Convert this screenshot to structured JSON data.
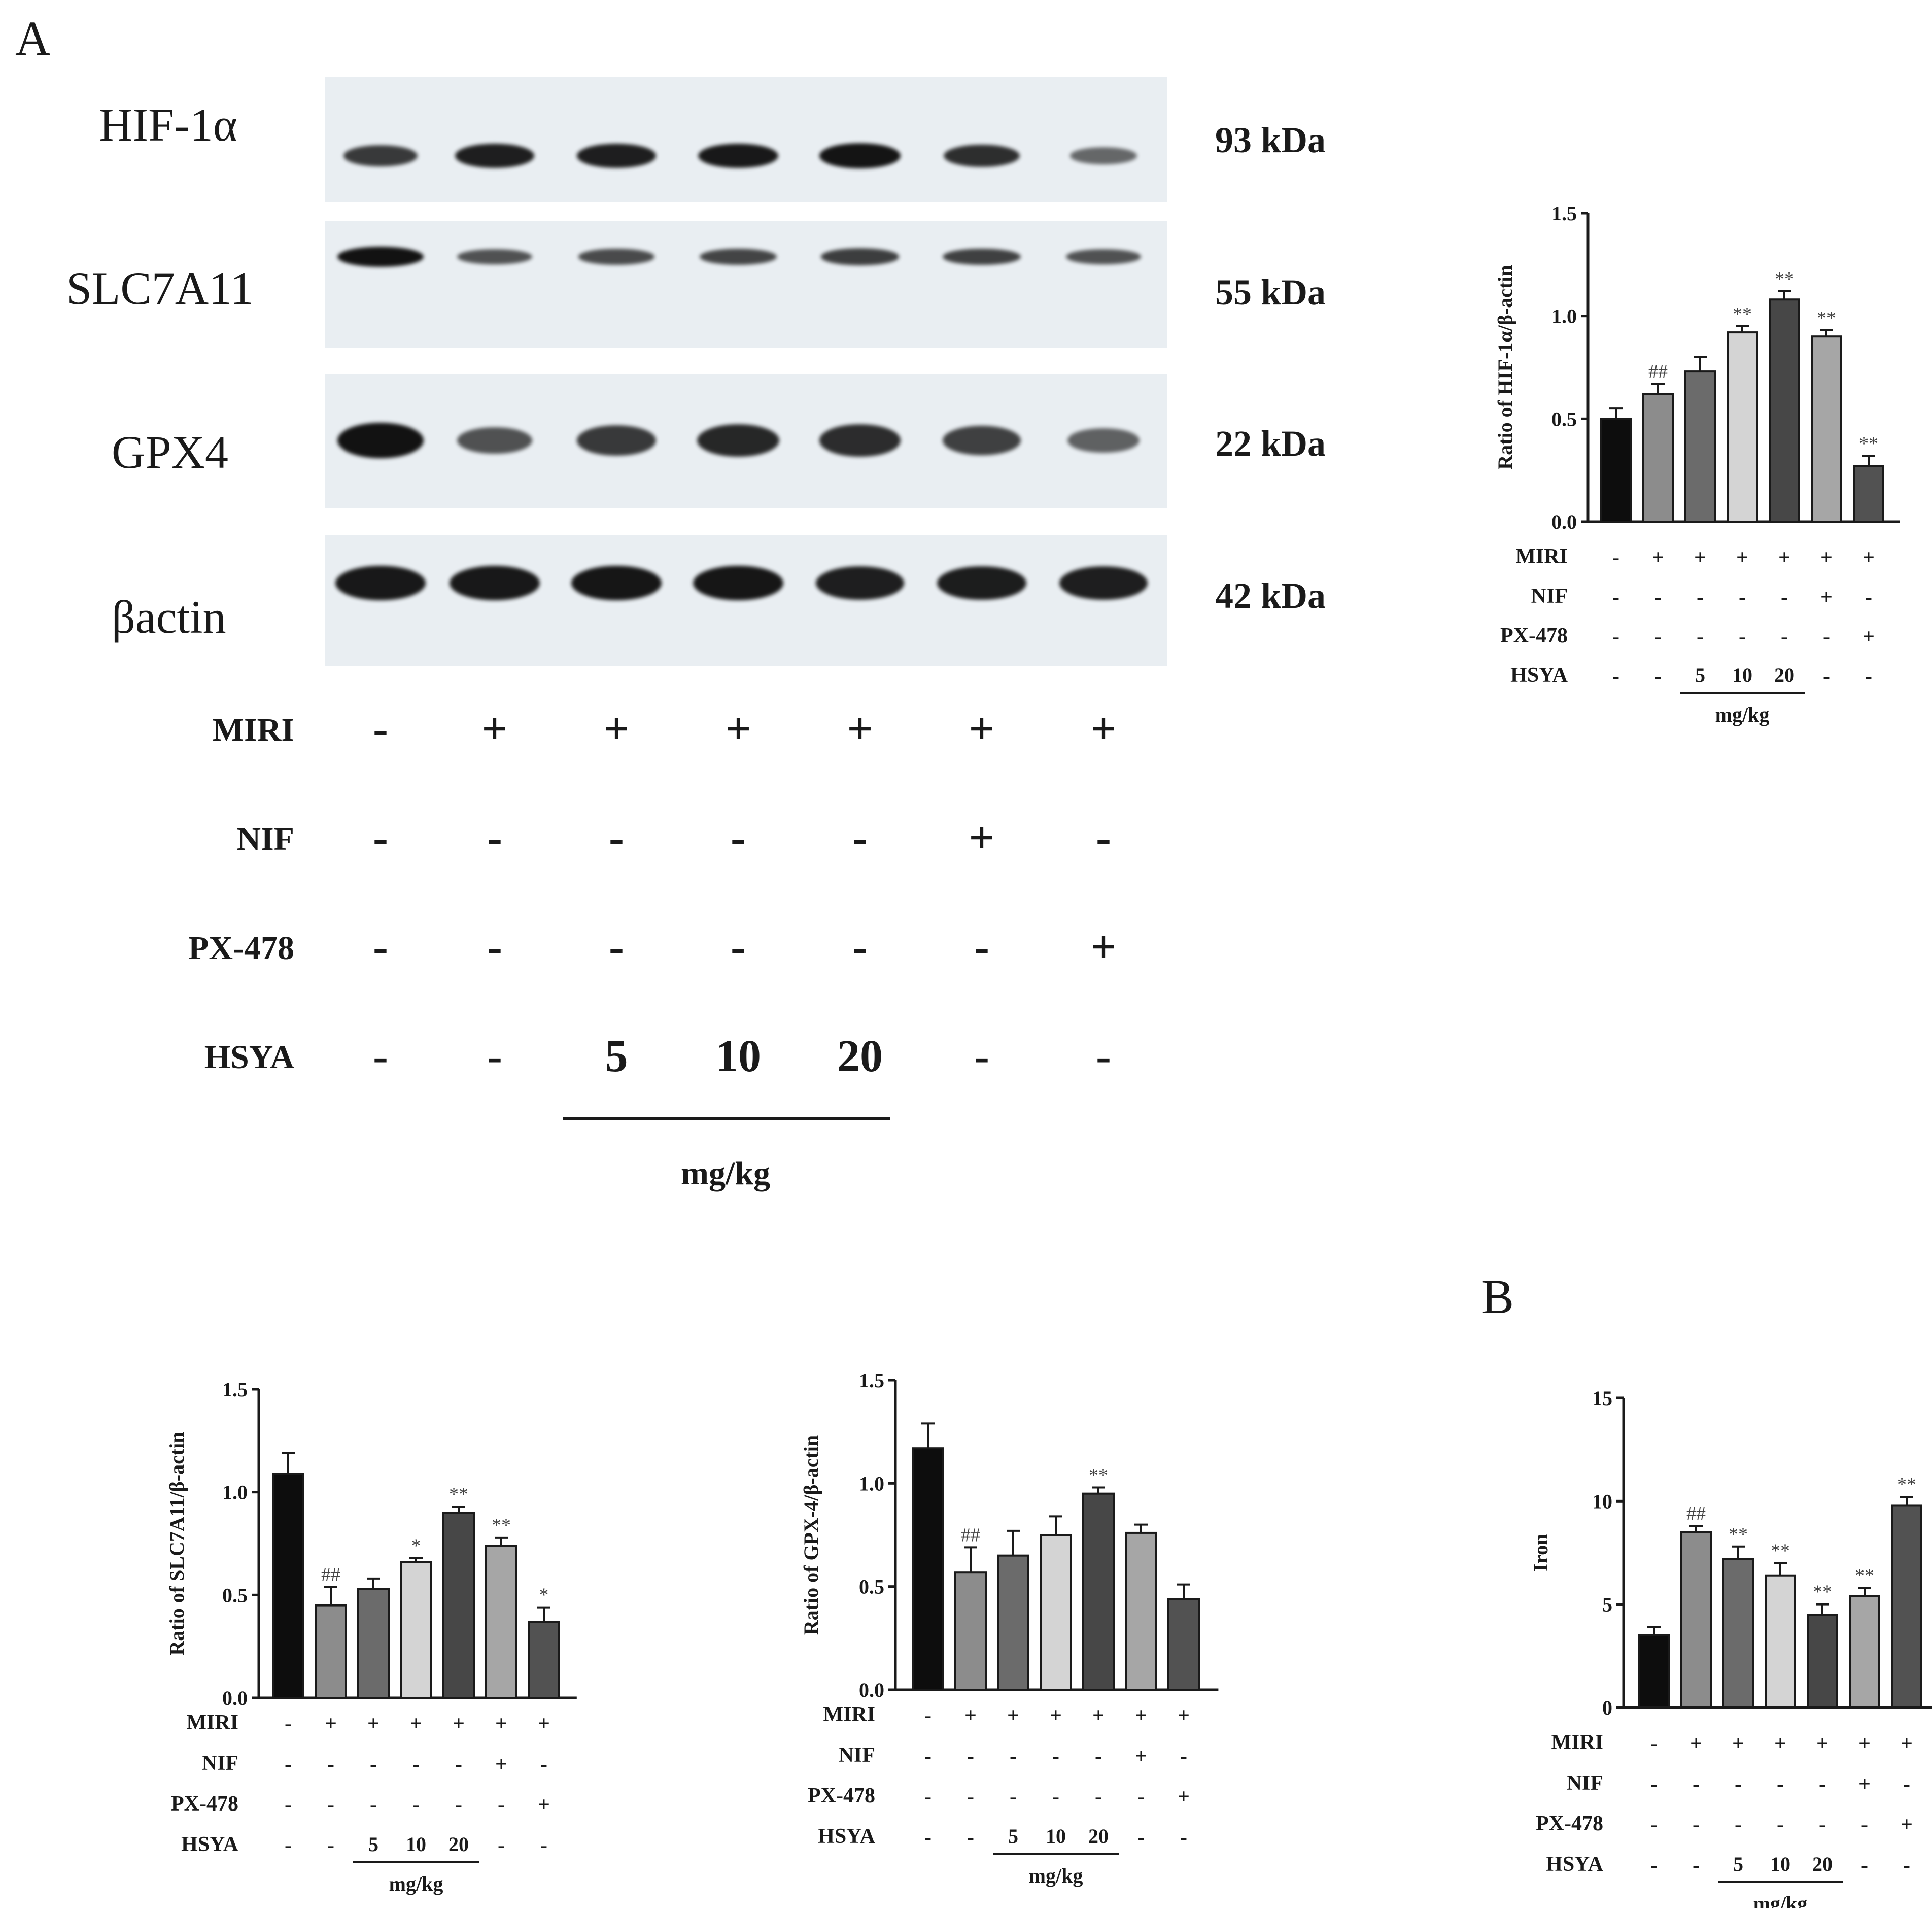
{
  "panels": {
    "a": "A",
    "b": "B"
  },
  "western_blot": {
    "rows": [
      {
        "label": "HIF-1α",
        "kda": "93 kDa",
        "intensity": [
          0.72,
          0.9,
          0.9,
          0.95,
          0.98,
          0.8,
          0.4
        ]
      },
      {
        "label": "SLC7A11",
        "kda": "55 kDa",
        "intensity": [
          1.0,
          0.55,
          0.6,
          0.65,
          0.7,
          0.68,
          0.55
        ]
      },
      {
        "label": "GPX4",
        "kda": "22 kDa",
        "intensity": [
          1.0,
          0.55,
          0.72,
          0.85,
          0.82,
          0.68,
          0.45
        ]
      },
      {
        "label": "βactin",
        "kda": "42 kDa",
        "intensity": [
          0.95,
          0.95,
          0.97,
          0.97,
          0.9,
          0.92,
          0.9
        ]
      }
    ],
    "conditions": [
      {
        "name": "MIRI",
        "values": [
          "-",
          "+",
          "+",
          "+",
          "+",
          "+",
          "+"
        ]
      },
      {
        "name": "NIF",
        "values": [
          "-",
          "-",
          "-",
          "-",
          "-",
          "+",
          "-"
        ]
      },
      {
        "name": "PX-478",
        "values": [
          "-",
          "-",
          "-",
          "-",
          "-",
          "-",
          "+"
        ]
      },
      {
        "name": "HSYA",
        "values": [
          "-",
          "-",
          "5",
          "10",
          "20",
          "-",
          "-"
        ]
      }
    ],
    "dose_unit": "mg/kg"
  },
  "colors": {
    "bars": [
      "#0d0d0d",
      "#8c8c8c",
      "#6b6b6b",
      "#d4d4d4",
      "#474747",
      "#a6a6a6",
      "#525252"
    ],
    "blot_background": "#e9eef2",
    "band": "#121212"
  },
  "chart_data": [
    {
      "type": "bar",
      "ylabel": "Ratio of HIF-1α/β-actin",
      "ylim": [
        0,
        1.5
      ],
      "yticks": [
        "0.0",
        "0.5",
        "1.0",
        "1.5"
      ],
      "values": [
        0.5,
        0.62,
        0.73,
        0.92,
        1.08,
        0.9,
        0.27
      ],
      "errors": [
        0.05,
        0.05,
        0.07,
        0.03,
        0.04,
        0.03,
        0.05
      ],
      "annotations": [
        "",
        "##",
        "",
        "**",
        "**",
        "**",
        "**"
      ],
      "conditions": [
        {
          "name": "MIRI",
          "values": [
            "-",
            "+",
            "+",
            "+",
            "+",
            "+",
            "+"
          ]
        },
        {
          "name": "NIF",
          "values": [
            "-",
            "-",
            "-",
            "-",
            "-",
            "+",
            "-"
          ]
        },
        {
          "name": "PX-478",
          "values": [
            "-",
            "-",
            "-",
            "-",
            "-",
            "-",
            "+"
          ]
        },
        {
          "name": "HSYA",
          "values": [
            "-",
            "-",
            "5",
            "10",
            "20",
            "-",
            "-"
          ]
        }
      ],
      "dose_unit": "mg/kg"
    },
    {
      "type": "bar",
      "ylabel": "Ratio of SLC7A11/β-actin",
      "ylim": [
        0,
        1.5
      ],
      "yticks": [
        "0.0",
        "0.5",
        "1.0",
        "1.5"
      ],
      "values": [
        1.09,
        0.45,
        0.53,
        0.66,
        0.9,
        0.74,
        0.37
      ],
      "errors": [
        0.1,
        0.09,
        0.05,
        0.02,
        0.03,
        0.04,
        0.07
      ],
      "annotations": [
        "",
        "##",
        "",
        "*",
        "**",
        "**",
        "*"
      ],
      "conditions": [
        {
          "name": "MIRI",
          "values": [
            "-",
            "+",
            "+",
            "+",
            "+",
            "+",
            "+"
          ]
        },
        {
          "name": "NIF",
          "values": [
            "-",
            "-",
            "-",
            "-",
            "-",
            "+",
            "-"
          ]
        },
        {
          "name": "PX-478",
          "values": [
            "-",
            "-",
            "-",
            "-",
            "-",
            "-",
            "+"
          ]
        },
        {
          "name": "HSYA",
          "values": [
            "-",
            "-",
            "5",
            "10",
            "20",
            "-",
            "-"
          ]
        }
      ],
      "dose_unit": "mg/kg"
    },
    {
      "type": "bar",
      "ylabel": "Ratio of GPX-4/β-actin",
      "ylim": [
        0,
        1.5
      ],
      "yticks": [
        "0.0",
        "0.5",
        "1.0",
        "1.5"
      ],
      "values": [
        1.17,
        0.57,
        0.65,
        0.75,
        0.95,
        0.76,
        0.44
      ],
      "errors": [
        0.12,
        0.12,
        0.12,
        0.09,
        0.03,
        0.04,
        0.07
      ],
      "annotations": [
        "",
        "##",
        "",
        "",
        "**",
        "",
        ""
      ],
      "conditions": [
        {
          "name": "MIRI",
          "values": [
            "-",
            "+",
            "+",
            "+",
            "+",
            "+",
            "+"
          ]
        },
        {
          "name": "NIF",
          "values": [
            "-",
            "-",
            "-",
            "-",
            "-",
            "+",
            "-"
          ]
        },
        {
          "name": "PX-478",
          "values": [
            "-",
            "-",
            "-",
            "-",
            "-",
            "-",
            "+"
          ]
        },
        {
          "name": "HSYA",
          "values": [
            "-",
            "-",
            "5",
            "10",
            "20",
            "-",
            "-"
          ]
        }
      ],
      "dose_unit": "mg/kg"
    },
    {
      "type": "bar",
      "ylabel": "Iron",
      "ylim": [
        0,
        15
      ],
      "yticks": [
        "0",
        "5",
        "10",
        "15"
      ],
      "values": [
        3.5,
        8.5,
        7.2,
        6.4,
        4.5,
        5.4,
        9.8
      ],
      "errors": [
        0.4,
        0.3,
        0.6,
        0.6,
        0.5,
        0.4,
        0.4
      ],
      "annotations": [
        "",
        "##",
        "**",
        "**",
        "**",
        "**",
        "**"
      ],
      "conditions": [
        {
          "name": "MIRI",
          "values": [
            "-",
            "+",
            "+",
            "+",
            "+",
            "+",
            "+"
          ]
        },
        {
          "name": "NIF",
          "values": [
            "-",
            "-",
            "-",
            "-",
            "-",
            "+",
            "-"
          ]
        },
        {
          "name": "PX-478",
          "values": [
            "-",
            "-",
            "-",
            "-",
            "-",
            "-",
            "+"
          ]
        },
        {
          "name": "HSYA",
          "values": [
            "-",
            "-",
            "5",
            "10",
            "20",
            "-",
            "-"
          ]
        }
      ],
      "dose_unit": "mg/kg"
    }
  ]
}
